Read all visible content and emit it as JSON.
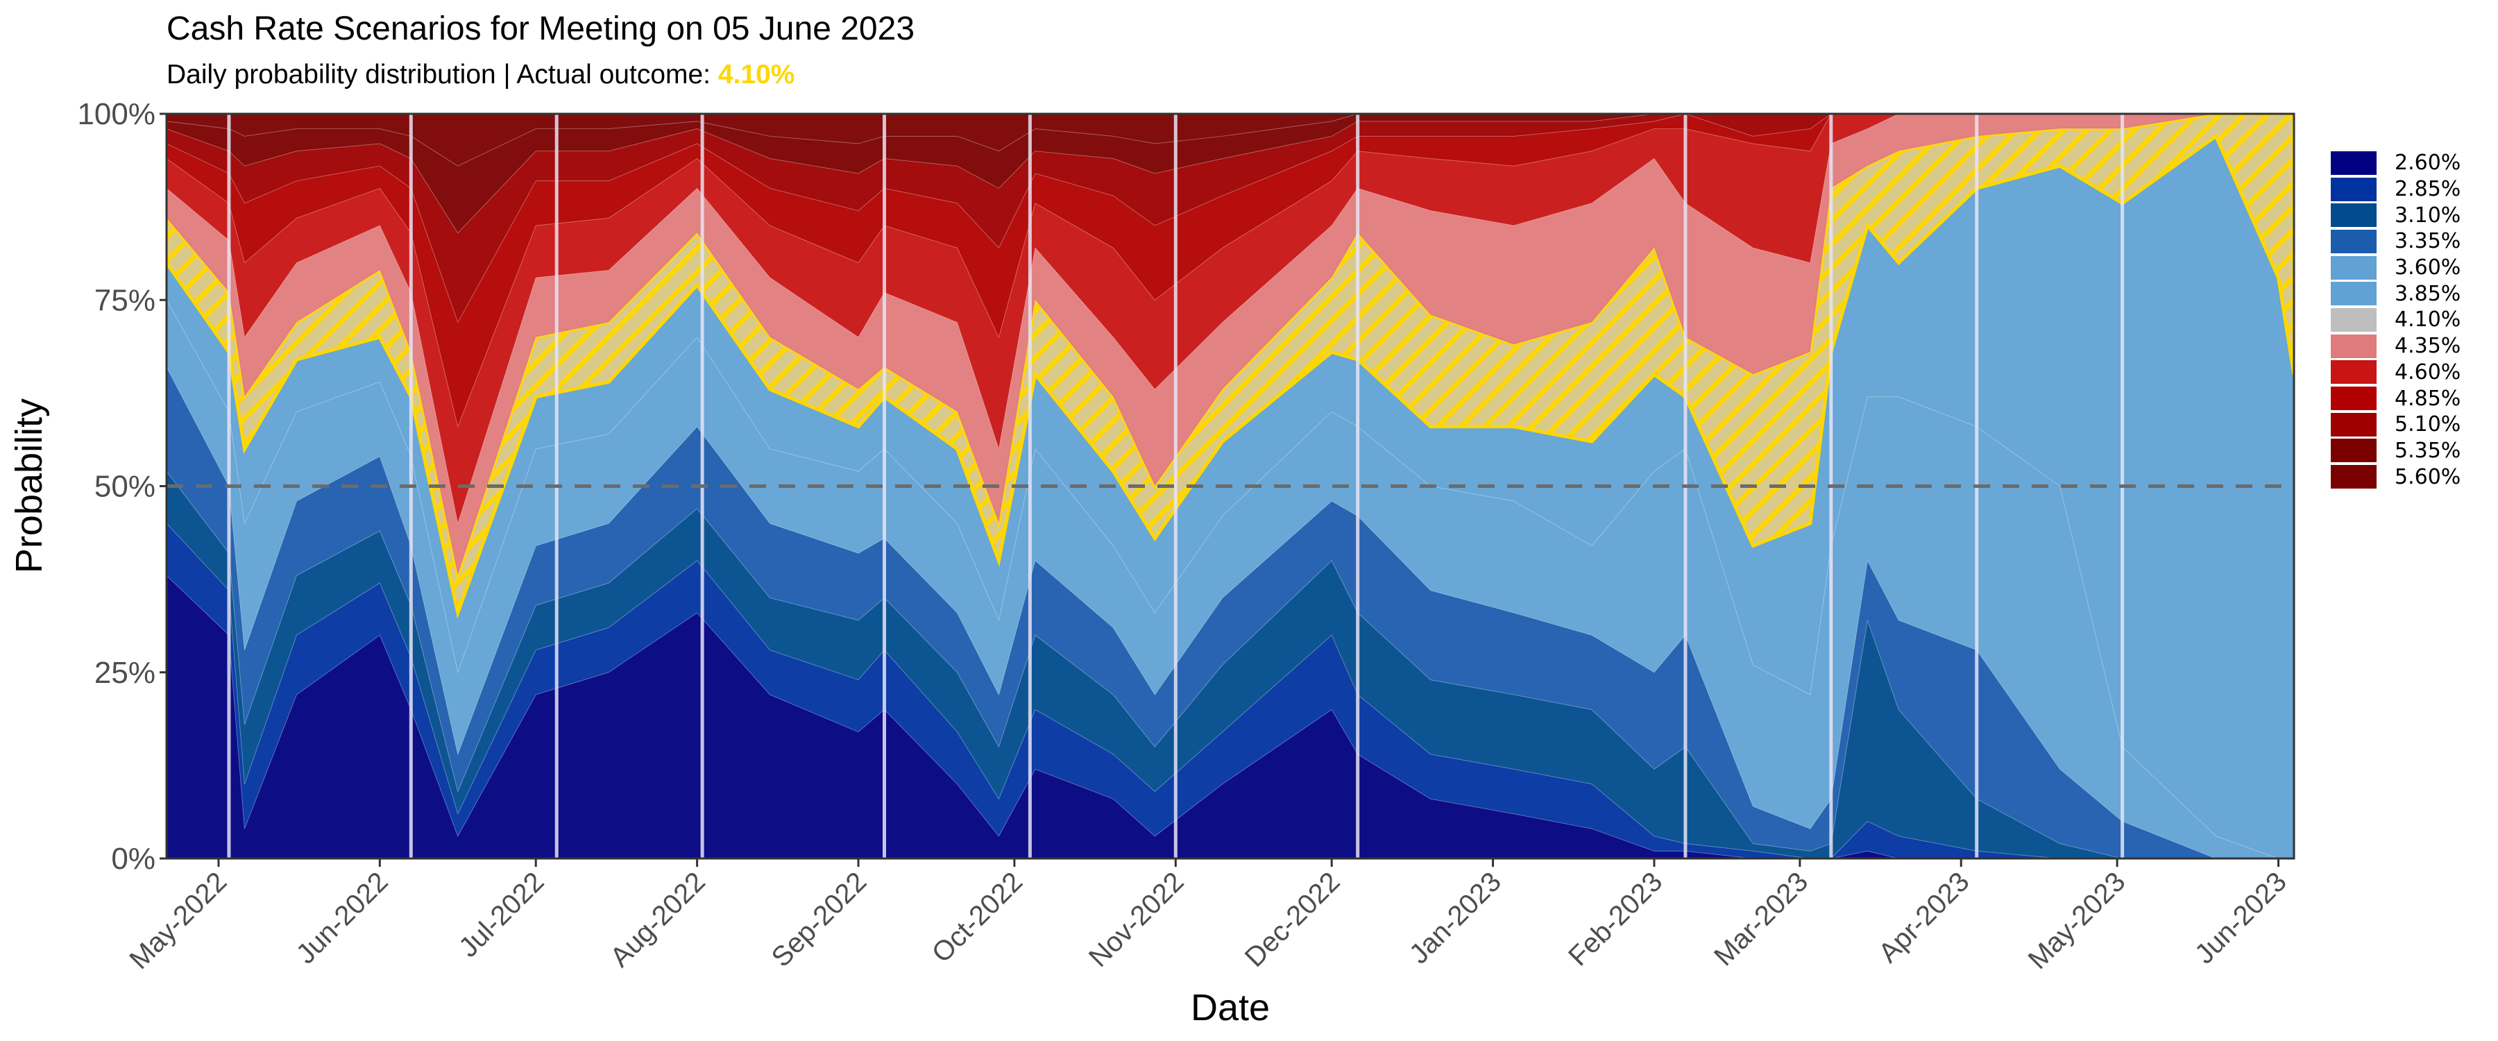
{
  "chart_data": {
    "type": "area",
    "stacked": true,
    "title": "Cash Rate Scenarios for Meeting on 05 June 2023",
    "subtitle_prefix": "Daily probability distribution | Actual outcome: ",
    "subtitle_highlight": "4.10%",
    "xlabel": "Date",
    "ylabel": "Probability",
    "ylim": [
      0,
      100
    ],
    "xlim": [
      "2022-04-21",
      "2023-06-04"
    ],
    "y_ticks": [
      "0%",
      "25%",
      "50%",
      "75%",
      "100%"
    ],
    "y_tick_values": [
      0,
      25,
      50,
      75,
      100
    ],
    "x_ticks": [
      {
        "date": "2022-05-01",
        "label": "May-2022"
      },
      {
        "date": "2022-06-01",
        "label": "Jun-2022"
      },
      {
        "date": "2022-07-01",
        "label": "Jul-2022"
      },
      {
        "date": "2022-08-01",
        "label": "Aug-2022"
      },
      {
        "date": "2022-09-01",
        "label": "Sep-2022"
      },
      {
        "date": "2022-10-01",
        "label": "Oct-2022"
      },
      {
        "date": "2022-11-01",
        "label": "Nov-2022"
      },
      {
        "date": "2022-12-01",
        "label": "Dec-2022"
      },
      {
        "date": "2023-01-01",
        "label": "Jan-2023"
      },
      {
        "date": "2023-02-01",
        "label": "Feb-2023"
      },
      {
        "date": "2023-03-01",
        "label": "Mar-2023"
      },
      {
        "date": "2023-04-01",
        "label": "Apr-2023"
      },
      {
        "date": "2023-05-01",
        "label": "May-2023"
      },
      {
        "date": "2023-06-01",
        "label": "Jun-2023"
      }
    ],
    "reference_line": 50,
    "meeting_dates": [
      "2022-05-03",
      "2022-06-07",
      "2022-07-05",
      "2022-08-02",
      "2022-09-06",
      "2022-10-04",
      "2022-11-01",
      "2022-12-06",
      "2023-02-07",
      "2023-03-07",
      "2023-04-04",
      "2023-05-02"
    ],
    "actual_outcome": "4.10%",
    "legend_position": "right",
    "value_semantics": "cumulative probability (%) that rate <= series level",
    "x": [
      "2022-04-21",
      "2022-05-03",
      "2022-05-06",
      "2022-05-16",
      "2022-06-01",
      "2022-06-07",
      "2022-06-16",
      "2022-07-01",
      "2022-07-15",
      "2022-08-01",
      "2022-08-15",
      "2022-09-01",
      "2022-09-06",
      "2022-09-20",
      "2022-09-28",
      "2022-10-05",
      "2022-10-20",
      "2022-10-28",
      "2022-11-10",
      "2022-12-01",
      "2022-12-06",
      "2022-12-20",
      "2023-01-05",
      "2023-01-20",
      "2023-02-01",
      "2023-02-07",
      "2023-02-20",
      "2023-03-03",
      "2023-03-07",
      "2023-03-14",
      "2023-03-20",
      "2023-04-04",
      "2023-04-20",
      "2023-05-02",
      "2023-05-20",
      "2023-06-01",
      "2023-06-04"
    ],
    "series": [
      {
        "name": "2.60%",
        "color": "#000080",
        "cumulative": [
          38,
          30,
          4,
          22,
          30,
          20,
          3,
          22,
          25,
          33,
          22,
          17,
          20,
          10,
          3,
          12,
          8,
          3,
          10,
          20,
          14,
          8,
          6,
          4,
          1,
          1,
          0,
          0,
          0,
          1,
          0,
          0,
          0,
          0,
          0,
          0,
          0
        ]
      },
      {
        "name": "2.85%",
        "color": "#0033A0",
        "cumulative": [
          45,
          36,
          10,
          30,
          37,
          27,
          6,
          28,
          31,
          40,
          28,
          24,
          28,
          17,
          8,
          20,
          14,
          9,
          17,
          30,
          22,
          14,
          12,
          10,
          3,
          2,
          1,
          0,
          0,
          5,
          3,
          1,
          0,
          0,
          0,
          0,
          0
        ]
      },
      {
        "name": "3.10%",
        "color": "#004C8C",
        "cumulative": [
          52,
          41,
          18,
          38,
          44,
          34,
          9,
          34,
          37,
          47,
          35,
          32,
          35,
          25,
          15,
          30,
          22,
          15,
          26,
          40,
          33,
          24,
          22,
          20,
          12,
          15,
          2,
          1,
          2,
          32,
          20,
          8,
          2,
          0,
          0,
          0,
          0
        ]
      },
      {
        "name": "3.35%",
        "color": "#1C5CAD",
        "cumulative": [
          66,
          50,
          28,
          48,
          54,
          42,
          14,
          42,
          45,
          58,
          45,
          41,
          43,
          33,
          22,
          40,
          31,
          22,
          35,
          48,
          46,
          36,
          33,
          30,
          25,
          30,
          7,
          4,
          8,
          40,
          32,
          28,
          12,
          5,
          0,
          0,
          0
        ]
      },
      {
        "name": "3.60%",
        "color": "#60A2D4",
        "cumulative": [
          75,
          60,
          45,
          60,
          64,
          54,
          25,
          55,
          57,
          70,
          55,
          52,
          55,
          45,
          32,
          55,
          42,
          33,
          46,
          60,
          58,
          50,
          48,
          42,
          52,
          55,
          26,
          22,
          42,
          62,
          62,
          58,
          50,
          15,
          3,
          0,
          0
        ]
      },
      {
        "name": "3.85%",
        "color": "#60A2D4",
        "cumulative": [
          80,
          68,
          55,
          67,
          70,
          62,
          33,
          62,
          64,
          77,
          63,
          58,
          62,
          55,
          40,
          65,
          52,
          43,
          56,
          68,
          67,
          58,
          58,
          56,
          65,
          62,
          42,
          45,
          68,
          85,
          80,
          90,
          93,
          88,
          97,
          78,
          65
        ]
      },
      {
        "name": "4.10%",
        "color": "#BEBEBE",
        "cumulative": [
          86,
          76,
          62,
          72,
          79,
          68,
          38,
          70,
          72,
          84,
          70,
          63,
          66,
          60,
          45,
          75,
          62,
          50,
          63,
          78,
          84,
          73,
          69,
          72,
          82,
          70,
          65,
          68,
          90,
          93,
          95,
          97,
          98,
          98,
          100,
          100,
          100
        ]
      },
      {
        "name": "4.35%",
        "color": "#E07B7B",
        "cumulative": [
          90,
          83,
          70,
          80,
          85,
          76,
          45,
          78,
          79,
          90,
          78,
          70,
          76,
          72,
          55,
          82,
          70,
          63,
          72,
          85,
          90,
          87,
          85,
          88,
          94,
          88,
          82,
          80,
          96,
          98,
          100,
          100,
          100,
          100,
          100,
          100,
          100
        ]
      },
      {
        "name": "4.60%",
        "color": "#C81414",
        "cumulative": [
          94,
          88,
          80,
          86,
          90,
          84,
          58,
          85,
          86,
          94,
          85,
          80,
          85,
          82,
          70,
          88,
          82,
          75,
          82,
          91,
          95,
          94,
          93,
          95,
          98,
          98,
          96,
          95,
          100,
          100,
          100,
          100,
          100,
          100,
          100,
          100,
          100
        ]
      },
      {
        "name": "4.85%",
        "color": "#B20000",
        "cumulative": [
          96,
          92,
          88,
          91,
          93,
          90,
          72,
          91,
          91,
          96,
          90,
          87,
          90,
          88,
          82,
          92,
          89,
          85,
          89,
          95,
          97,
          97,
          97,
          98,
          99,
          100,
          97,
          98,
          100,
          100,
          100,
          100,
          100,
          100,
          100,
          100,
          100
        ]
      },
      {
        "name": "5.10%",
        "color": "#9E0000",
        "cumulative": [
          98,
          95,
          93,
          95,
          96,
          94,
          84,
          95,
          95,
          98,
          94,
          92,
          94,
          93,
          90,
          95,
          94,
          92,
          94,
          97,
          99,
          99,
          99,
          99,
          100,
          100,
          100,
          100,
          100,
          100,
          100,
          100,
          100,
          100,
          100,
          100,
          100
        ]
      },
      {
        "name": "5.35%",
        "color": "#7A0000",
        "cumulative": [
          99,
          98,
          97,
          98,
          98,
          97,
          93,
          98,
          98,
          99,
          97,
          96,
          97,
          97,
          95,
          98,
          97,
          96,
          97,
          99,
          100,
          100,
          100,
          100,
          100,
          100,
          100,
          100,
          100,
          100,
          100,
          100,
          100,
          100,
          100,
          100,
          100
        ]
      },
      {
        "name": "5.60%",
        "color": "#7A0000",
        "cumulative": [
          100,
          100,
          100,
          100,
          100,
          100,
          100,
          100,
          100,
          100,
          100,
          100,
          100,
          100,
          100,
          100,
          100,
          100,
          100,
          100,
          100,
          100,
          100,
          100,
          100,
          100,
          100,
          100,
          100,
          100,
          100,
          100,
          100,
          100,
          100,
          100,
          100
        ]
      }
    ]
  }
}
